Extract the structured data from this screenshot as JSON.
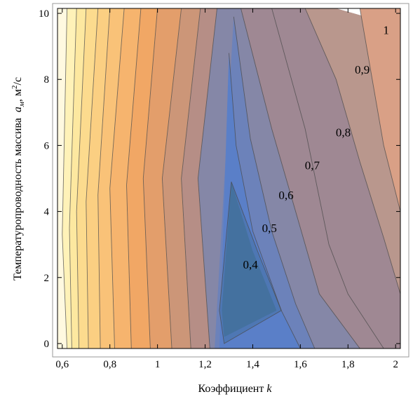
{
  "chart_data": {
    "type": "contour",
    "xlabel": "Коэффициент",
    "xlabel_symbol": "k",
    "ylabel": "Температуропроводность массива",
    "ylabel_symbol": "a",
    "ylabel_subscript": "м",
    "ylabel_unit_base": ", м",
    "ylabel_unit_sup": "2",
    "ylabel_unit_tail": "/с",
    "xlim": [
      0.58,
      2.02
    ],
    "ylim": [
      -0.15,
      10.15
    ],
    "x_ticks": [
      {
        "value": 0.6,
        "label": "0,6"
      },
      {
        "value": 0.8,
        "label": "0,8"
      },
      {
        "value": 1.0,
        "label": "1"
      },
      {
        "value": 1.2,
        "label": "1,2"
      },
      {
        "value": 1.4,
        "label": "1,4"
      },
      {
        "value": 1.6,
        "label": "1,6"
      },
      {
        "value": 1.8,
        "label": "1,8"
      },
      {
        "value": 2.0,
        "label": "2"
      }
    ],
    "y_ticks": [
      {
        "value": 0,
        "label": "0"
      },
      {
        "value": 2,
        "label": "2"
      },
      {
        "value": 4,
        "label": "4"
      },
      {
        "value": 6,
        "label": "6"
      },
      {
        "value": 8,
        "label": "8"
      },
      {
        "value": 10,
        "label": "10"
      }
    ],
    "contour_labels": [
      {
        "text": "0,4",
        "x": 1.39,
        "y": 2.4
      },
      {
        "text": "0,5",
        "x": 1.47,
        "y": 3.5
      },
      {
        "text": "0,6",
        "x": 1.54,
        "y": 4.5
      },
      {
        "text": "0,7",
        "x": 1.65,
        "y": 5.4
      },
      {
        "text": "0,8",
        "x": 1.78,
        "y": 6.4
      },
      {
        "text": "0,9",
        "x": 1.86,
        "y": 8.3
      },
      {
        "text": "1",
        "x": 1.96,
        "y": 9.5
      }
    ],
    "bands": [
      {
        "color": "#fff9e0",
        "points": [
          [
            0.58,
            -0.15
          ],
          [
            0.58,
            10.15
          ],
          [
            0.62,
            10.15
          ],
          [
            0.6,
            3.3
          ],
          [
            0.62,
            -0.15
          ]
        ]
      },
      {
        "color": "#fff2b8",
        "points": [
          [
            0.62,
            -0.15
          ],
          [
            0.6,
            3.3
          ],
          [
            0.62,
            10.15
          ],
          [
            0.66,
            10.15
          ],
          [
            0.63,
            3.5
          ],
          [
            0.64,
            -0.15
          ]
        ]
      },
      {
        "color": "#fde8a0",
        "points": [
          [
            0.64,
            -0.15
          ],
          [
            0.63,
            3.5
          ],
          [
            0.66,
            10.15
          ],
          [
            0.7,
            10.15
          ],
          [
            0.66,
            4.0
          ],
          [
            0.67,
            -0.15
          ]
        ]
      },
      {
        "color": "#fcdb8e",
        "points": [
          [
            0.67,
            -0.15
          ],
          [
            0.66,
            4.0
          ],
          [
            0.7,
            10.15
          ],
          [
            0.75,
            10.15
          ],
          [
            0.7,
            4.3
          ],
          [
            0.71,
            -0.15
          ]
        ]
      },
      {
        "color": "#fbcf82",
        "points": [
          [
            0.71,
            -0.15
          ],
          [
            0.7,
            4.3
          ],
          [
            0.75,
            10.15
          ],
          [
            0.8,
            10.15
          ],
          [
            0.75,
            4.5
          ],
          [
            0.76,
            -0.15
          ]
        ]
      },
      {
        "color": "#f9c278",
        "points": [
          [
            0.76,
            -0.15
          ],
          [
            0.75,
            4.5
          ],
          [
            0.8,
            10.15
          ],
          [
            0.86,
            10.15
          ],
          [
            0.8,
            4.7
          ],
          [
            0.82,
            -0.15
          ]
        ]
      },
      {
        "color": "#f6b46e",
        "points": [
          [
            0.82,
            -0.15
          ],
          [
            0.8,
            4.7
          ],
          [
            0.86,
            10.15
          ],
          [
            0.93,
            10.15
          ],
          [
            0.87,
            4.8
          ],
          [
            0.89,
            -0.15
          ]
        ]
      },
      {
        "color": "#f1a765",
        "points": [
          [
            0.89,
            -0.15
          ],
          [
            0.87,
            4.8
          ],
          [
            0.93,
            10.15
          ],
          [
            1.0,
            10.15
          ],
          [
            0.94,
            5.0
          ],
          [
            0.97,
            -0.15
          ]
        ]
      },
      {
        "color": "#e39e6b",
        "points": [
          [
            0.97,
            -0.15
          ],
          [
            0.94,
            5.0
          ],
          [
            1.0,
            10.15
          ],
          [
            1.1,
            10.15
          ],
          [
            1.02,
            5.0
          ],
          [
            1.06,
            -0.15
          ]
        ]
      },
      {
        "color": "#cc9678",
        "points": [
          [
            1.06,
            -0.15
          ],
          [
            1.02,
            5.0
          ],
          [
            1.1,
            10.15
          ],
          [
            1.18,
            10.15
          ],
          [
            1.1,
            5.0
          ],
          [
            1.14,
            -0.15
          ]
        ]
      },
      {
        "color": "#b68e86",
        "points": [
          [
            1.14,
            -0.15
          ],
          [
            1.1,
            5.0
          ],
          [
            1.18,
            10.15
          ],
          [
            1.25,
            10.15
          ],
          [
            1.17,
            5.0
          ],
          [
            1.22,
            -0.15
          ]
        ]
      },
      {
        "color": "#9f8893",
        "points": [
          [
            1.22,
            -0.15
          ],
          [
            1.17,
            5.0
          ],
          [
            1.25,
            10.15
          ],
          [
            1.75,
            10.15
          ],
          [
            2.02,
            9.6
          ],
          [
            2.02,
            -0.15
          ]
        ]
      },
      {
        "color": "#b9978d",
        "points": [
          [
            1.62,
            10.15
          ],
          [
            1.75,
            8.0
          ],
          [
            1.85,
            5.5
          ],
          [
            1.95,
            3.2
          ],
          [
            2.02,
            1.5
          ],
          [
            2.02,
            9.6
          ],
          [
            1.75,
            10.15
          ]
        ]
      },
      {
        "color": "#d9a086",
        "points": [
          [
            1.85,
            10.15
          ],
          [
            1.95,
            6.0
          ],
          [
            2.02,
            4.0
          ],
          [
            2.02,
            10.15
          ]
        ]
      },
      {
        "color": "#8587a7",
        "points": [
          [
            1.25,
            10.15
          ],
          [
            1.17,
            5.0
          ],
          [
            1.22,
            -0.15
          ],
          [
            1.85,
            -0.15
          ],
          [
            1.68,
            1.5
          ],
          [
            1.6,
            3.5
          ],
          [
            1.48,
            6.5
          ],
          [
            1.35,
            10.15
          ]
        ]
      },
      {
        "color": "#6c82ba",
        "points": [
          [
            1.32,
            9.9
          ],
          [
            1.24,
            -0.15
          ],
          [
            1.66,
            -0.15
          ],
          [
            1.58,
            1.2
          ],
          [
            1.48,
            3.4
          ],
          [
            1.39,
            6.2
          ]
        ]
      },
      {
        "color": "#5a7fc8",
        "points": [
          [
            1.3,
            8.8
          ],
          [
            1.26,
            -0.15
          ],
          [
            1.6,
            -0.15
          ],
          [
            1.52,
            1.0
          ],
          [
            1.4,
            3.4
          ],
          [
            1.33,
            6.0
          ]
        ]
      },
      {
        "color": "#4e77b4",
        "points": [
          [
            1.31,
            4.9
          ],
          [
            1.26,
            1.0
          ],
          [
            1.28,
            0.0
          ],
          [
            1.52,
            1.0
          ],
          [
            1.42,
            2.8
          ]
        ]
      },
      {
        "color": "#44719f",
        "points": [
          [
            1.31,
            4.9
          ],
          [
            1.27,
            1.0
          ],
          [
            1.28,
            0.2
          ],
          [
            1.5,
            1.0
          ],
          [
            1.4,
            2.8
          ]
        ]
      }
    ],
    "contour_lines": [
      [
        [
          0.6,
          3.3
        ],
        [
          0.62,
          10.15
        ]
      ],
      [
        [
          0.63,
          3.5
        ],
        [
          0.66,
          10.15
        ]
      ],
      [
        [
          0.66,
          4.0
        ],
        [
          0.7,
          10.15
        ]
      ],
      [
        [
          0.7,
          4.3
        ],
        [
          0.75,
          10.15
        ]
      ],
      [
        [
          0.75,
          4.5
        ],
        [
          0.8,
          10.15
        ]
      ],
      [
        [
          0.8,
          4.7
        ],
        [
          0.86,
          10.15
        ]
      ],
      [
        [
          0.87,
          4.8
        ],
        [
          0.93,
          10.15
        ]
      ],
      [
        [
          0.94,
          5.0
        ],
        [
          1.0,
          10.15
        ]
      ],
      [
        [
          1.02,
          5.0
        ],
        [
          1.1,
          10.15
        ]
      ],
      [
        [
          1.1,
          5.0
        ],
        [
          1.18,
          10.15
        ]
      ],
      [
        [
          1.17,
          5.0
        ],
        [
          1.25,
          10.15
        ]
      ],
      [
        [
          0.62,
          -0.15
        ],
        [
          0.6,
          3.3
        ]
      ],
      [
        [
          0.64,
          -0.15
        ],
        [
          0.63,
          3.5
        ]
      ],
      [
        [
          0.67,
          -0.15
        ],
        [
          0.66,
          4.0
        ]
      ],
      [
        [
          0.71,
          -0.15
        ],
        [
          0.7,
          4.3
        ]
      ],
      [
        [
          0.76,
          -0.15
        ],
        [
          0.75,
          4.5
        ]
      ],
      [
        [
          0.82,
          -0.15
        ],
        [
          0.8,
          4.7
        ]
      ],
      [
        [
          0.89,
          -0.15
        ],
        [
          0.87,
          4.8
        ]
      ],
      [
        [
          0.97,
          -0.15
        ],
        [
          0.94,
          5.0
        ]
      ],
      [
        [
          1.06,
          -0.15
        ],
        [
          1.02,
          5.0
        ]
      ],
      [
        [
          1.14,
          -0.15
        ],
        [
          1.1,
          5.0
        ]
      ],
      [
        [
          1.22,
          -0.15
        ],
        [
          1.17,
          5.0
        ]
      ],
      [
        [
          1.35,
          10.15
        ],
        [
          1.48,
          6.5
        ],
        [
          1.6,
          3.5
        ],
        [
          1.68,
          1.5
        ],
        [
          1.85,
          -0.15
        ]
      ],
      [
        [
          1.32,
          9.9
        ],
        [
          1.39,
          6.2
        ],
        [
          1.48,
          3.4
        ],
        [
          1.58,
          1.2
        ],
        [
          1.66,
          -0.15
        ]
      ],
      [
        [
          1.3,
          8.8
        ],
        [
          1.33,
          6.0
        ],
        [
          1.4,
          3.4
        ],
        [
          1.52,
          1.0
        ],
        [
          1.6,
          -0.15
        ]
      ],
      [
        [
          1.31,
          4.9
        ],
        [
          1.42,
          2.8
        ],
        [
          1.52,
          1.0
        ],
        [
          1.28,
          0.0
        ],
        [
          1.26,
          1.0
        ],
        [
          1.31,
          4.9
        ]
      ],
      [
        [
          1.48,
          10.15
        ],
        [
          1.62,
          6.5
        ],
        [
          1.72,
          3.0
        ],
        [
          1.8,
          1.5
        ],
        [
          1.95,
          -0.15
        ]
      ],
      [
        [
          1.62,
          10.15
        ],
        [
          1.75,
          8.0
        ],
        [
          1.85,
          5.5
        ],
        [
          1.95,
          3.2
        ],
        [
          2.02,
          1.5
        ]
      ],
      [
        [
          1.85,
          10.15
        ],
        [
          1.95,
          6.0
        ],
        [
          2.02,
          4.0
        ]
      ]
    ],
    "colors": {
      "frame": "#000000",
      "contour_stroke": "#4a4a4a",
      "outer_frame": "#888888"
    },
    "grid": false
  }
}
